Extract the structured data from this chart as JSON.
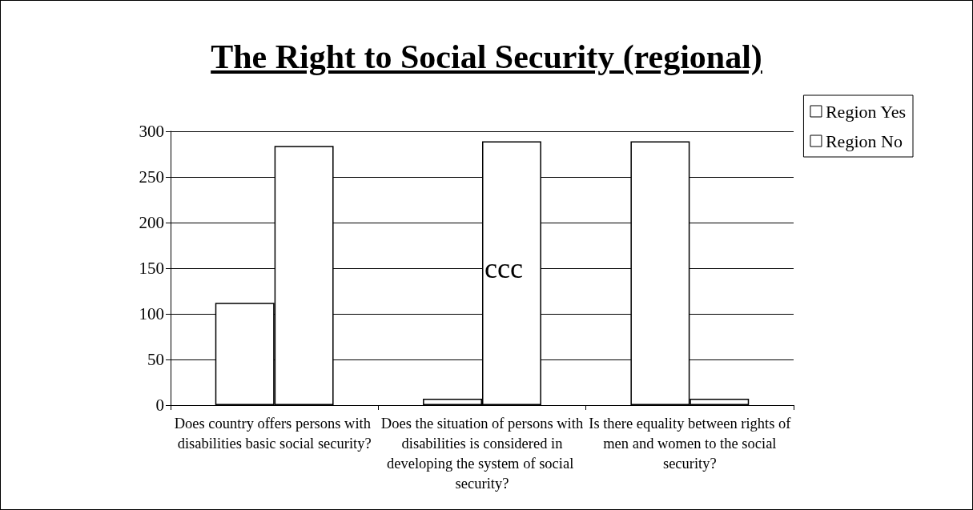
{
  "chart_data": {
    "type": "bar",
    "title": "The Right to Social Security (regional)",
    "categories": [
      "Does country offers persons with disabilities basic social security?",
      "Does the situation of persons with disabilities is considered in developing the system of social security?",
      "Is there equality between rights of men and women to the social security?"
    ],
    "series": [
      {
        "name": "Region Yes",
        "color": "#ffffff",
        "values": [
          112,
          7,
          289
        ]
      },
      {
        "name": "Region No",
        "color": "#ffffff",
        "values": [
          284,
          289,
          7
        ]
      }
    ],
    "ylim": [
      0,
      300
    ],
    "yticks": [
      0,
      50,
      100,
      150,
      200,
      250,
      300
    ],
    "grid": "y",
    "legend": "top right",
    "annotations": [
      "ccc"
    ]
  }
}
